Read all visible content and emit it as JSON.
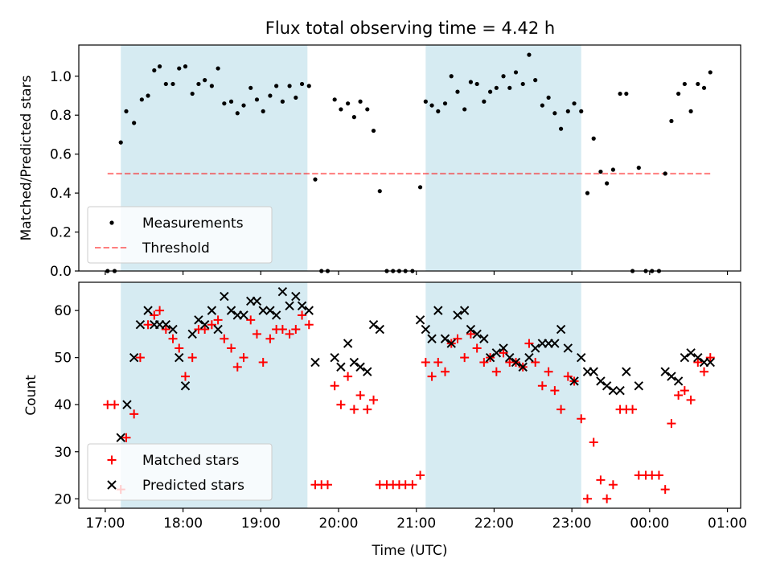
{
  "title": "Flux total observing time = 4.42 h",
  "colors": {
    "band": "#add8e6",
    "threshold": "#ff0000",
    "matched": "#ff0000",
    "predicted": "#000000",
    "measurements": "#000000"
  },
  "xaxis": {
    "label": "Time (UTC)",
    "ticks": [
      {
        "value": 17.0,
        "label": "17:00"
      },
      {
        "value": 18.0,
        "label": "18:00"
      },
      {
        "value": 19.0,
        "label": "19:00"
      },
      {
        "value": 20.0,
        "label": "20:00"
      },
      {
        "value": 21.0,
        "label": "21:00"
      },
      {
        "value": 22.0,
        "label": "22:00"
      },
      {
        "value": 23.0,
        "label": "23:00"
      },
      {
        "value": 24.0,
        "label": "00:00"
      },
      {
        "value": 25.0,
        "label": "01:00"
      }
    ]
  },
  "chart_data": [
    {
      "type": "scatter",
      "ylabel": "Matched/Predicted stars",
      "xlim": [
        16.66,
        25.17
      ],
      "ylim": [
        0.0,
        1.16
      ],
      "yticks": [
        {
          "value": 0.0,
          "label": "0.0"
        },
        {
          "value": 0.2,
          "label": "0.2"
        },
        {
          "value": 0.4,
          "label": "0.4"
        },
        {
          "value": 0.6,
          "label": "0.6"
        },
        {
          "value": 0.8,
          "label": "0.8"
        },
        {
          "value": 1.0,
          "label": "1.0"
        }
      ],
      "bands": [
        [
          17.2,
          19.6
        ],
        [
          21.12,
          23.12
        ]
      ],
      "legend_position": "lower-left",
      "legend": [
        {
          "label": "Measurements"
        },
        {
          "label": "Threshold"
        }
      ],
      "threshold": {
        "name": "Threshold",
        "value": 0.5,
        "x": [
          17.03,
          24.8
        ]
      },
      "series": [
        {
          "name": "Measurements",
          "marker": "dot",
          "x": [
            17.03,
            17.12,
            17.2,
            17.27,
            17.37,
            17.47,
            17.55,
            17.63,
            17.7,
            17.78,
            17.87,
            17.95,
            18.03,
            18.12,
            18.2,
            18.28,
            18.37,
            18.45,
            18.53,
            18.62,
            18.7,
            18.78,
            18.87,
            18.95,
            19.03,
            19.12,
            19.2,
            19.28,
            19.37,
            19.45,
            19.53,
            19.62,
            19.7,
            19.78,
            19.86,
            19.95,
            20.03,
            20.12,
            20.2,
            20.28,
            20.37,
            20.45,
            20.53,
            20.62,
            20.7,
            20.78,
            20.86,
            20.95,
            21.05,
            21.12,
            21.2,
            21.28,
            21.37,
            21.45,
            21.53,
            21.62,
            21.7,
            21.78,
            21.87,
            21.95,
            22.03,
            22.12,
            22.2,
            22.28,
            22.37,
            22.45,
            22.53,
            22.62,
            22.7,
            22.78,
            22.86,
            22.95,
            23.03,
            23.12,
            23.2,
            23.28,
            23.37,
            23.45,
            23.53,
            23.62,
            23.7,
            23.78,
            23.86,
            23.95,
            24.03,
            24.12,
            24.2,
            24.28,
            24.37,
            24.45,
            24.53,
            24.62,
            24.7,
            24.78
          ],
          "y": [
            0.0,
            0.0,
            0.66,
            0.82,
            0.76,
            0.88,
            0.9,
            1.03,
            1.05,
            0.96,
            0.96,
            1.04,
            1.05,
            0.91,
            0.96,
            0.98,
            0.95,
            1.04,
            0.86,
            0.87,
            0.81,
            0.85,
            0.94,
            0.88,
            0.82,
            0.9,
            0.95,
            0.87,
            0.95,
            0.89,
            0.96,
            0.95,
            0.47,
            0.0,
            0.0,
            0.88,
            0.83,
            0.86,
            0.79,
            0.87,
            0.83,
            0.72,
            0.41,
            0.0,
            0.0,
            0.0,
            0.0,
            0.0,
            0.43,
            0.87,
            0.85,
            0.82,
            0.86,
            1.0,
            0.92,
            0.83,
            0.97,
            0.96,
            0.87,
            0.92,
            0.94,
            1.0,
            0.94,
            1.02,
            0.96,
            1.11,
            0.98,
            0.85,
            0.89,
            0.81,
            0.73,
            0.82,
            0.86,
            0.82,
            0.4,
            0.68,
            0.51,
            0.45,
            0.52,
            0.91,
            0.91,
            0.0,
            0.53,
            0.0,
            0.0,
            0.0,
            0.5,
            0.77,
            0.91,
            0.96,
            0.82,
            0.96,
            0.94,
            1.02
          ]
        }
      ]
    },
    {
      "type": "scatter",
      "xlabel": "Time (UTC)",
      "ylabel": "Count",
      "xlim": [
        16.66,
        25.17
      ],
      "ylim": [
        18,
        66
      ],
      "yticks": [
        {
          "value": 20,
          "label": "20"
        },
        {
          "value": 30,
          "label": "30"
        },
        {
          "value": 40,
          "label": "40"
        },
        {
          "value": 50,
          "label": "50"
        },
        {
          "value": 60,
          "label": "60"
        }
      ],
      "bands": [
        [
          17.2,
          19.6
        ],
        [
          21.12,
          23.12
        ]
      ],
      "legend_position": "lower-left",
      "legend": [
        {
          "label": "Matched stars"
        },
        {
          "label": "Predicted stars"
        }
      ],
      "series": [
        {
          "name": "Matched stars",
          "marker": "plus",
          "x": [
            17.03,
            17.12,
            17.2,
            17.27,
            17.37,
            17.45,
            17.55,
            17.63,
            17.7,
            17.78,
            17.87,
            17.95,
            18.03,
            18.12,
            18.2,
            18.28,
            18.37,
            18.45,
            18.53,
            18.62,
            18.7,
            18.78,
            18.87,
            18.95,
            19.03,
            19.12,
            19.2,
            19.28,
            19.37,
            19.45,
            19.53,
            19.62,
            19.7,
            19.78,
            19.86,
            19.95,
            20.03,
            20.12,
            20.2,
            20.28,
            20.37,
            20.45,
            20.53,
            20.62,
            20.7,
            20.78,
            20.86,
            20.95,
            21.05,
            21.12,
            21.2,
            21.28,
            21.37,
            21.45,
            21.53,
            21.62,
            21.7,
            21.78,
            21.87,
            21.95,
            22.03,
            22.12,
            22.2,
            22.28,
            22.37,
            22.45,
            22.53,
            22.62,
            22.7,
            22.78,
            22.86,
            22.95,
            23.03,
            23.12,
            23.2,
            23.28,
            23.37,
            23.45,
            23.53,
            23.62,
            23.7,
            23.78,
            23.86,
            23.95,
            24.03,
            24.12,
            24.2,
            24.28,
            24.37,
            24.45,
            24.53,
            24.62,
            24.7,
            24.78
          ],
          "y": [
            40,
            40,
            22,
            33,
            38,
            50,
            57,
            59,
            60,
            56,
            54,
            52,
            46,
            50,
            56,
            56,
            57,
            58,
            54,
            52,
            48,
            50,
            58,
            55,
            49,
            54,
            56,
            56,
            55,
            56,
            59,
            57,
            23,
            23,
            23,
            44,
            40,
            46,
            39,
            42,
            39,
            41,
            23,
            23,
            23,
            23,
            23,
            23,
            25,
            49,
            46,
            49,
            47,
            53,
            54,
            50,
            55,
            52,
            49,
            50,
            47,
            51,
            49,
            49,
            48,
            53,
            49,
            44,
            47,
            43,
            39,
            46,
            45,
            37,
            20,
            32,
            24,
            20,
            23,
            39,
            39,
            39,
            25,
            25,
            25,
            25,
            22,
            36,
            42,
            43,
            41,
            49,
            47,
            50
          ]
        },
        {
          "name": "Predicted stars",
          "marker": "x",
          "x": [
            17.2,
            17.28,
            17.37,
            17.45,
            17.55,
            17.63,
            17.7,
            17.78,
            17.87,
            17.95,
            18.03,
            18.12,
            18.2,
            18.28,
            18.37,
            18.45,
            18.53,
            18.62,
            18.7,
            18.78,
            18.87,
            18.95,
            19.03,
            19.12,
            19.2,
            19.28,
            19.37,
            19.45,
            19.53,
            19.62,
            19.7,
            19.95,
            20.03,
            20.12,
            20.2,
            20.28,
            20.37,
            20.45,
            20.53,
            21.05,
            21.12,
            21.2,
            21.28,
            21.37,
            21.45,
            21.53,
            21.62,
            21.7,
            21.78,
            21.87,
            21.95,
            22.03,
            22.12,
            22.2,
            22.28,
            22.37,
            22.45,
            22.53,
            22.62,
            22.7,
            22.78,
            22.86,
            22.95,
            23.03,
            23.12,
            23.2,
            23.28,
            23.37,
            23.45,
            23.53,
            23.62,
            23.7,
            23.86,
            24.2,
            24.28,
            24.37,
            24.45,
            24.53,
            24.62,
            24.7,
            24.78
          ],
          "y": [
            33,
            40,
            50,
            57,
            60,
            57,
            57,
            57,
            56,
            50,
            44,
            55,
            58,
            57,
            60,
            56,
            63,
            60,
            59,
            59,
            62,
            62,
            60,
            60,
            59,
            64,
            61,
            63,
            61,
            60,
            49,
            50,
            48,
            53,
            49,
            48,
            47,
            57,
            56,
            58,
            56,
            54,
            60,
            54,
            53,
            59,
            60,
            56,
            55,
            54,
            50,
            51,
            52,
            50,
            49,
            48,
            50,
            52,
            53,
            53,
            53,
            56,
            52,
            45,
            50,
            47,
            47,
            45,
            44,
            43,
            43,
            47,
            44,
            47,
            46,
            45,
            50,
            51,
            50,
            49,
            49
          ]
        }
      ]
    }
  ]
}
